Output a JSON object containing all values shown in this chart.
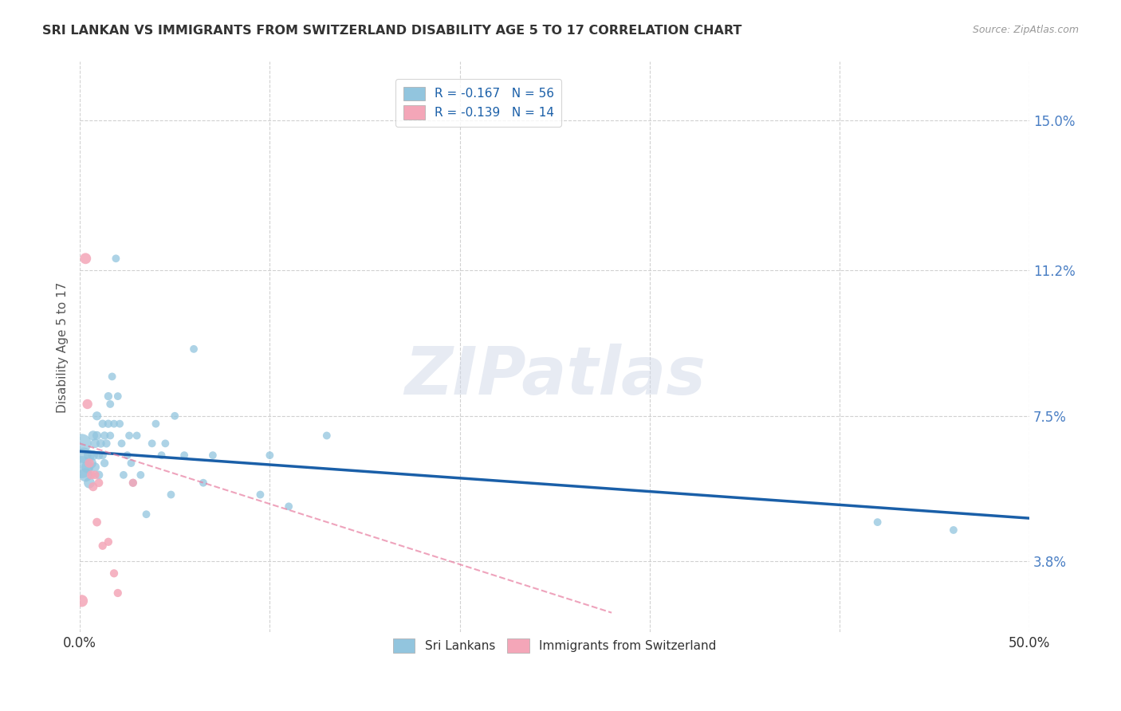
{
  "title": "SRI LANKAN VS IMMIGRANTS FROM SWITZERLAND DISABILITY AGE 5 TO 17 CORRELATION CHART",
  "source": "Source: ZipAtlas.com",
  "ylabel": "Disability Age 5 to 17",
  "xlim": [
    0,
    0.5
  ],
  "ylim": [
    0.02,
    0.165
  ],
  "xticks": [
    0.0,
    0.1,
    0.2,
    0.3,
    0.4,
    0.5
  ],
  "xticklabels": [
    "0.0%",
    "",
    "",
    "",
    "",
    "50.0%"
  ],
  "ytick_positions": [
    0.038,
    0.075,
    0.112,
    0.15
  ],
  "ytick_labels": [
    "3.8%",
    "7.5%",
    "11.2%",
    "15.0%"
  ],
  "legend1_label": "R = -0.167   N = 56",
  "legend2_label": "R = -0.139   N = 14",
  "legend_bottom_label1": "Sri Lankans",
  "legend_bottom_label2": "Immigrants from Switzerland",
  "blue_color": "#92c5de",
  "pink_color": "#f4a6b8",
  "blue_line_color": "#1a5fa8",
  "pink_line_color": "#e87da0",
  "watermark_text": "ZIPatlas",
  "blue_scatter_x": [
    0.001,
    0.001,
    0.002,
    0.003,
    0.004,
    0.005,
    0.005,
    0.006,
    0.007,
    0.007,
    0.008,
    0.008,
    0.009,
    0.009,
    0.01,
    0.01,
    0.011,
    0.012,
    0.012,
    0.013,
    0.013,
    0.014,
    0.015,
    0.015,
    0.016,
    0.016,
    0.017,
    0.018,
    0.019,
    0.02,
    0.021,
    0.022,
    0.023,
    0.025,
    0.026,
    0.027,
    0.028,
    0.03,
    0.032,
    0.035,
    0.038,
    0.04,
    0.043,
    0.045,
    0.048,
    0.05,
    0.055,
    0.06,
    0.065,
    0.07,
    0.095,
    0.1,
    0.11,
    0.13,
    0.42,
    0.46
  ],
  "blue_scatter_y": [
    0.062,
    0.068,
    0.065,
    0.06,
    0.062,
    0.058,
    0.065,
    0.063,
    0.07,
    0.065,
    0.068,
    0.062,
    0.075,
    0.07,
    0.065,
    0.06,
    0.068,
    0.073,
    0.065,
    0.07,
    0.063,
    0.068,
    0.08,
    0.073,
    0.078,
    0.07,
    0.085,
    0.073,
    0.115,
    0.08,
    0.073,
    0.068,
    0.06,
    0.065,
    0.07,
    0.063,
    0.058,
    0.07,
    0.06,
    0.05,
    0.068,
    0.073,
    0.065,
    0.068,
    0.055,
    0.075,
    0.065,
    0.092,
    0.058,
    0.065,
    0.055,
    0.065,
    0.052,
    0.07,
    0.048,
    0.046
  ],
  "blue_scatter_sizes": [
    400,
    300,
    200,
    150,
    120,
    100,
    100,
    90,
    80,
    80,
    70,
    70,
    65,
    65,
    60,
    60,
    60,
    55,
    55,
    55,
    55,
    55,
    55,
    55,
    50,
    50,
    50,
    50,
    50,
    50,
    50,
    50,
    50,
    50,
    50,
    50,
    50,
    50,
    50,
    50,
    50,
    50,
    50,
    50,
    50,
    50,
    50,
    50,
    50,
    50,
    50,
    50,
    50,
    50,
    50,
    50
  ],
  "pink_scatter_x": [
    0.001,
    0.003,
    0.004,
    0.005,
    0.006,
    0.007,
    0.008,
    0.009,
    0.01,
    0.012,
    0.015,
    0.018,
    0.02,
    0.028
  ],
  "pink_scatter_y": [
    0.028,
    0.115,
    0.078,
    0.063,
    0.06,
    0.057,
    0.06,
    0.048,
    0.058,
    0.042,
    0.043,
    0.035,
    0.03,
    0.058
  ],
  "pink_scatter_sizes": [
    120,
    100,
    80,
    70,
    65,
    65,
    60,
    60,
    60,
    55,
    55,
    55,
    55,
    55
  ],
  "blue_trend_x": [
    0.0,
    0.5
  ],
  "blue_trend_y": [
    0.066,
    0.049
  ],
  "pink_trend_x": [
    0.0,
    0.28
  ],
  "pink_trend_y": [
    0.068,
    0.025
  ],
  "background_color": "#ffffff",
  "grid_color": "#cccccc",
  "title_color": "#333333",
  "source_color": "#999999",
  "tick_label_color": "#4a7fc4",
  "ylabel_color": "#555555"
}
